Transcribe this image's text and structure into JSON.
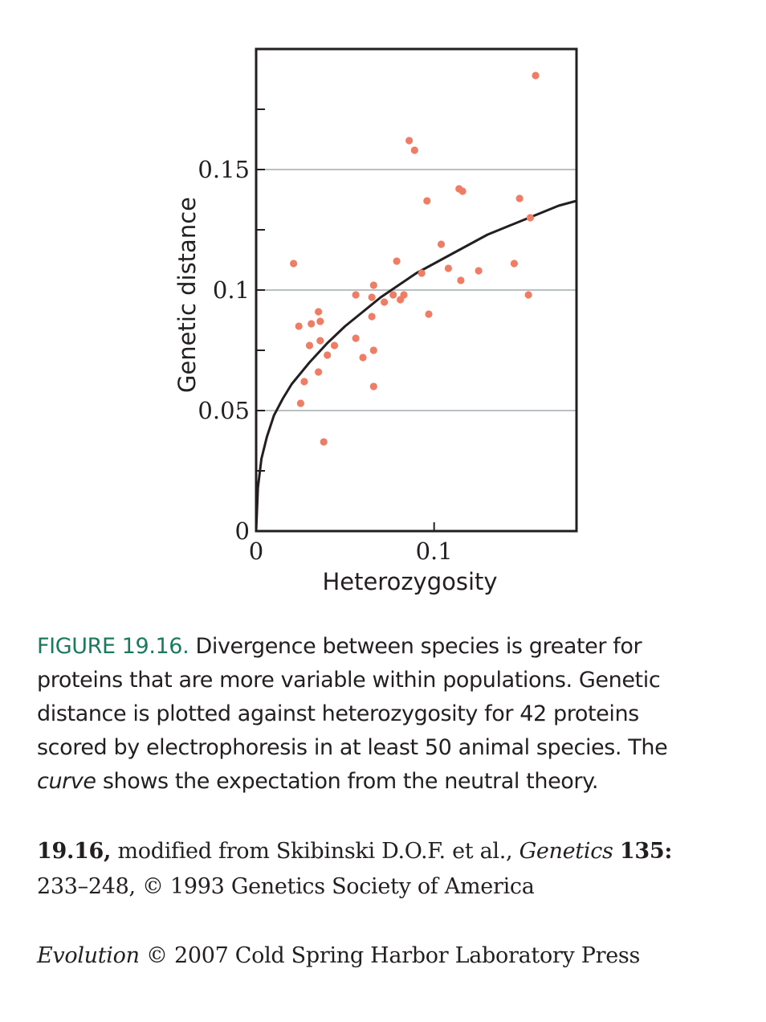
{
  "chart_data": {
    "type": "scatter",
    "xlabel": "Heterozygosity",
    "ylabel": "Genetic distance",
    "xlim": [
      0,
      0.18
    ],
    "ylim": [
      0,
      0.2
    ],
    "xticks": [
      0,
      0.1
    ],
    "xtick_labels": [
      "0",
      "0.1"
    ],
    "yticks": [
      0,
      0.05,
      0.1,
      0.15
    ],
    "ytick_labels": [
      "0",
      "0.05",
      "0.1",
      "0.15"
    ],
    "y_minor_ticks": [
      0.025,
      0.075,
      0.125,
      0.175
    ],
    "gridlines_y": [
      0.05,
      0.1,
      0.15
    ],
    "point_color": "#ef7d66",
    "curve_color": "#231f20",
    "grid_color": "#b9bfc3",
    "points": [
      {
        "x": 0.021,
        "y": 0.111
      },
      {
        "x": 0.024,
        "y": 0.085
      },
      {
        "x": 0.025,
        "y": 0.053
      },
      {
        "x": 0.027,
        "y": 0.062
      },
      {
        "x": 0.03,
        "y": 0.077
      },
      {
        "x": 0.031,
        "y": 0.086
      },
      {
        "x": 0.035,
        "y": 0.091
      },
      {
        "x": 0.035,
        "y": 0.066
      },
      {
        "x": 0.036,
        "y": 0.087
      },
      {
        "x": 0.036,
        "y": 0.079
      },
      {
        "x": 0.038,
        "y": 0.037
      },
      {
        "x": 0.04,
        "y": 0.073
      },
      {
        "x": 0.044,
        "y": 0.077
      },
      {
        "x": 0.056,
        "y": 0.098
      },
      {
        "x": 0.056,
        "y": 0.08
      },
      {
        "x": 0.06,
        "y": 0.072
      },
      {
        "x": 0.065,
        "y": 0.097
      },
      {
        "x": 0.065,
        "y": 0.089
      },
      {
        "x": 0.066,
        "y": 0.102
      },
      {
        "x": 0.066,
        "y": 0.075
      },
      {
        "x": 0.066,
        "y": 0.06
      },
      {
        "x": 0.072,
        "y": 0.095
      },
      {
        "x": 0.077,
        "y": 0.098
      },
      {
        "x": 0.079,
        "y": 0.112
      },
      {
        "x": 0.081,
        "y": 0.096
      },
      {
        "x": 0.083,
        "y": 0.098
      },
      {
        "x": 0.086,
        "y": 0.162
      },
      {
        "x": 0.089,
        "y": 0.158
      },
      {
        "x": 0.093,
        "y": 0.107
      },
      {
        "x": 0.096,
        "y": 0.137
      },
      {
        "x": 0.097,
        "y": 0.09
      },
      {
        "x": 0.104,
        "y": 0.119
      },
      {
        "x": 0.108,
        "y": 0.109
      },
      {
        "x": 0.114,
        "y": 0.142
      },
      {
        "x": 0.115,
        "y": 0.104
      },
      {
        "x": 0.116,
        "y": 0.141
      },
      {
        "x": 0.125,
        "y": 0.108
      },
      {
        "x": 0.145,
        "y": 0.111
      },
      {
        "x": 0.148,
        "y": 0.138
      },
      {
        "x": 0.153,
        "y": 0.098
      },
      {
        "x": 0.154,
        "y": 0.13
      },
      {
        "x": 0.157,
        "y": 0.189
      }
    ],
    "curve": {
      "x": [
        0,
        0.001,
        0.003,
        0.006,
        0.01,
        0.015,
        0.02,
        0.03,
        0.04,
        0.05,
        0.06,
        0.07,
        0.08,
        0.09,
        0.1,
        0.11,
        0.12,
        0.13,
        0.14,
        0.15,
        0.16,
        0.17,
        0.18
      ],
      "y": [
        0,
        0.018,
        0.03,
        0.039,
        0.048,
        0.055,
        0.061,
        0.07,
        0.078,
        0.085,
        0.091,
        0.097,
        0.102,
        0.107,
        0.111,
        0.115,
        0.119,
        0.123,
        0.126,
        0.129,
        0.132,
        0.135,
        0.137
      ]
    }
  },
  "caption": {
    "label": "FIGURE 19.16.",
    "line1": "Divergence between species is greater for",
    "line2": "proteins that are more variable within populations. Genetic",
    "line3": "distance is plotted against heterozygosity for 42 proteins",
    "line4": "scored by electrophoresis in at least 50 animal species. The",
    "line5_italic": "curve",
    "line5_rest": "shows the expectation from the neutral theory."
  },
  "credit": {
    "ref": "19.16,",
    "source": "modified from Skibinski D.O.F. et al.,",
    "journal": "Genetics",
    "volume": "135:",
    "pages": "233–248, © 1993 Genetics Society of America"
  },
  "copyright": {
    "book": "Evolution",
    "text": "© 2007 Cold Spring Harbor Laboratory Press"
  }
}
